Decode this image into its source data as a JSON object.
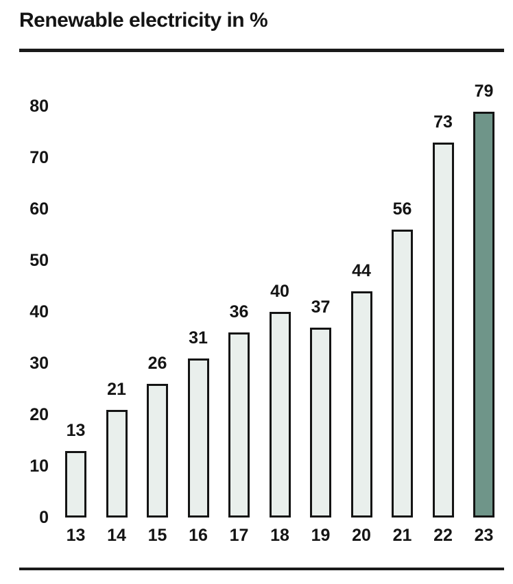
{
  "title": "Renewable electricity in %",
  "colors": {
    "text": "#141414",
    "rule": "#1a1a1a",
    "bar_fill": "#e9efec",
    "bar_border": "#141414",
    "bar_highlight": "#6f9589"
  },
  "chart_data": {
    "type": "bar",
    "title": "Renewable electricity in %",
    "categories": [
      "13",
      "14",
      "15",
      "16",
      "17",
      "18",
      "19",
      "20",
      "21",
      "22",
      "23"
    ],
    "values": [
      13,
      21,
      26,
      31,
      36,
      40,
      37,
      44,
      56,
      73,
      79
    ],
    "highlight_index": 10,
    "value_labels": [
      13,
      21,
      26,
      31,
      36,
      40,
      37,
      44,
      56,
      73,
      79
    ],
    "xlabel": "",
    "ylabel": "",
    "ylim": [
      0,
      80
    ],
    "yticks": [
      0,
      10,
      20,
      30,
      40,
      50,
      60,
      70,
      80
    ],
    "grid": false,
    "legend": false
  }
}
